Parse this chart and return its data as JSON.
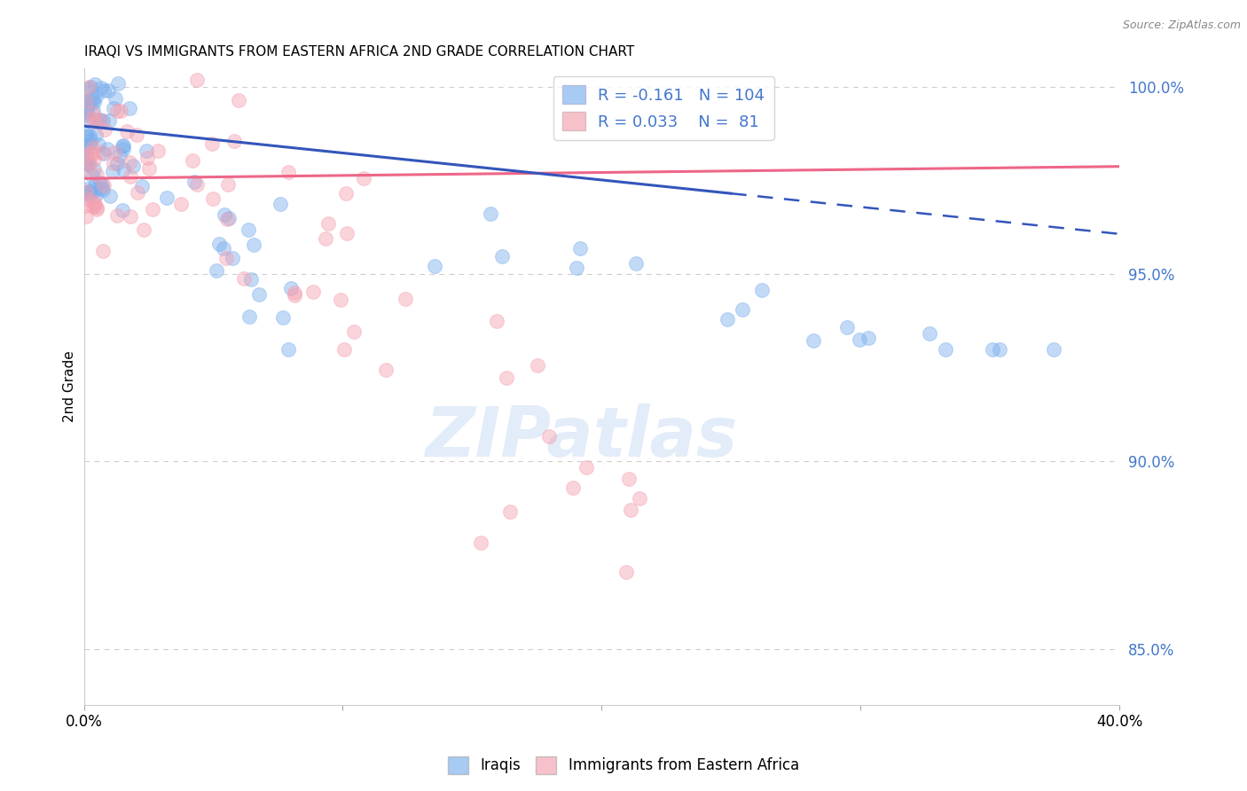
{
  "title": "IRAQI VS IMMIGRANTS FROM EASTERN AFRICA 2ND GRADE CORRELATION CHART",
  "source": "Source: ZipAtlas.com",
  "ylabel": "2nd Grade",
  "xlim": [
    0.0,
    0.4
  ],
  "ylim": [
    0.835,
    1.005
  ],
  "yticks_right": [
    0.85,
    0.9,
    0.95,
    1.0
  ],
  "yticklabels_right": [
    "85.0%",
    "90.0%",
    "95.0%",
    "100.0%"
  ],
  "grid_color": "#cccccc",
  "background_color": "#ffffff",
  "blue_color": "#7aafee",
  "pink_color": "#f4a0b0",
  "blue_line_color": "#3355bb",
  "pink_line_color": "#ee6688",
  "legend_R1": "-0.161",
  "legend_N1": "104",
  "legend_R2": "0.033",
  "legend_N2": "81",
  "label1": "Iraqis",
  "label2": "Immigrants from Eastern Africa",
  "title_fontsize": 11,
  "axis_label_color": "#4477cc",
  "watermark": "ZIPatlas"
}
